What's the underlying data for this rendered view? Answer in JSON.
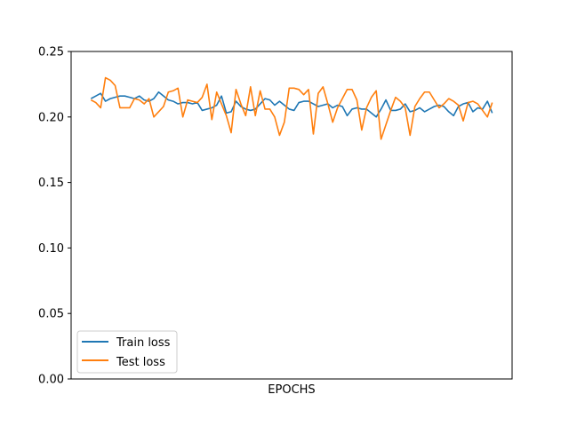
{
  "chart_data": {
    "type": "line",
    "title": "",
    "xlabel": "EPOCHS",
    "ylabel": "",
    "ylim": [
      0.0,
      0.25
    ],
    "yticks": [
      "0.00",
      "0.05",
      "0.10",
      "0.15",
      "0.20",
      "0.25"
    ],
    "grid": false,
    "legend_position": "lower-left",
    "x": [
      1,
      2,
      3,
      4,
      5,
      6,
      7,
      8,
      9,
      10,
      11,
      12,
      13,
      14,
      15,
      16,
      17,
      18,
      19,
      20,
      21,
      22,
      23,
      24,
      25,
      26,
      27,
      28,
      29,
      30,
      31,
      32,
      33,
      34,
      35,
      36,
      37,
      38,
      39,
      40,
      41,
      42,
      43,
      44,
      45,
      46,
      47,
      48,
      49,
      50,
      51,
      52,
      53,
      54,
      55,
      56,
      57,
      58,
      59,
      60,
      61,
      62,
      63,
      64,
      65,
      66,
      67,
      68,
      69,
      70,
      71,
      72,
      73,
      74,
      75,
      76,
      77,
      78,
      79,
      80,
      81,
      82,
      83,
      84
    ],
    "series": [
      {
        "name": "Train loss",
        "color": "#1f77b4",
        "values": [
          0.214,
          0.216,
          0.218,
          0.212,
          0.214,
          0.215,
          0.216,
          0.216,
          0.215,
          0.214,
          0.216,
          0.213,
          0.212,
          0.214,
          0.219,
          0.216,
          0.213,
          0.212,
          0.21,
          0.211,
          0.211,
          0.21,
          0.211,
          0.205,
          0.206,
          0.207,
          0.209,
          0.216,
          0.203,
          0.204,
          0.212,
          0.208,
          0.206,
          0.205,
          0.206,
          0.21,
          0.214,
          0.213,
          0.209,
          0.212,
          0.209,
          0.206,
          0.205,
          0.211,
          0.212,
          0.212,
          0.21,
          0.208,
          0.209,
          0.21,
          0.207,
          0.209,
          0.208,
          0.201,
          0.206,
          0.207,
          0.206,
          0.206,
          0.203,
          0.2,
          0.206,
          0.213,
          0.205,
          0.205,
          0.206,
          0.21,
          0.204,
          0.205,
          0.207,
          0.204,
          0.206,
          0.208,
          0.209,
          0.208,
          0.204,
          0.201,
          0.208,
          0.21,
          0.211,
          0.204,
          0.207,
          0.206,
          0.212,
          0.203
        ]
      },
      {
        "name": "Test loss",
        "color": "#ff7f0e",
        "values": [
          0.213,
          0.211,
          0.207,
          0.23,
          0.228,
          0.224,
          0.207,
          0.207,
          0.207,
          0.214,
          0.213,
          0.21,
          0.214,
          0.2,
          0.204,
          0.208,
          0.219,
          0.22,
          0.222,
          0.2,
          0.213,
          0.212,
          0.211,
          0.215,
          0.225,
          0.198,
          0.219,
          0.21,
          0.201,
          0.188,
          0.221,
          0.21,
          0.201,
          0.223,
          0.201,
          0.22,
          0.206,
          0.206,
          0.2,
          0.186,
          0.196,
          0.222,
          0.222,
          0.221,
          0.217,
          0.221,
          0.187,
          0.218,
          0.223,
          0.21,
          0.196,
          0.207,
          0.214,
          0.221,
          0.221,
          0.213,
          0.19,
          0.207,
          0.215,
          0.22,
          0.183,
          0.194,
          0.205,
          0.215,
          0.212,
          0.207,
          0.186,
          0.208,
          0.214,
          0.219,
          0.219,
          0.213,
          0.207,
          0.21,
          0.214,
          0.212,
          0.209,
          0.197,
          0.211,
          0.212,
          0.21,
          0.205,
          0.2,
          0.211
        ]
      }
    ]
  }
}
